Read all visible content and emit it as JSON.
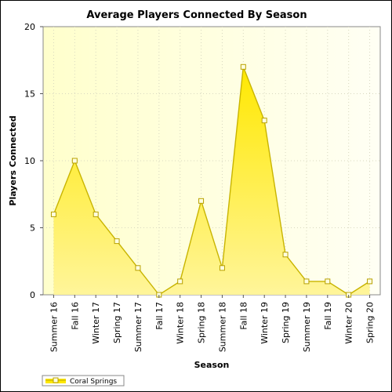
{
  "chart_data": {
    "type": "area",
    "title": "Average Players Connected By Season",
    "xlabel": "Season",
    "ylabel": "Players Connected",
    "ylim": [
      0,
      20
    ],
    "yticks": [
      0,
      5,
      10,
      15,
      20
    ],
    "grid": true,
    "legend_position": "bottom-left",
    "categories": [
      "Summer 16",
      "Fall 16",
      "Winter 17",
      "Spring 17",
      "Summer 17",
      "Fall 17",
      "Winter 18",
      "Spring 18",
      "Summer 18",
      "Fall 18",
      "Winter 19",
      "Spring 19",
      "Summer 19",
      "Fall 19",
      "Winter 20",
      "Spring 20"
    ],
    "series": [
      {
        "name": "Coral Springs",
        "values": [
          6,
          10,
          6,
          4,
          2,
          0,
          1,
          7,
          2,
          17,
          13,
          3,
          1,
          1,
          0,
          1
        ]
      }
    ],
    "colors": {
      "area_fill_top": "#ffe800",
      "area_fill_bottom": "#fff59a",
      "line": "#c8b400",
      "marker_fill": "#ffffe0",
      "marker_stroke": "#b8a000",
      "plot_bg_left": "#ffffcc",
      "plot_bg_right": "#fffff4"
    }
  }
}
